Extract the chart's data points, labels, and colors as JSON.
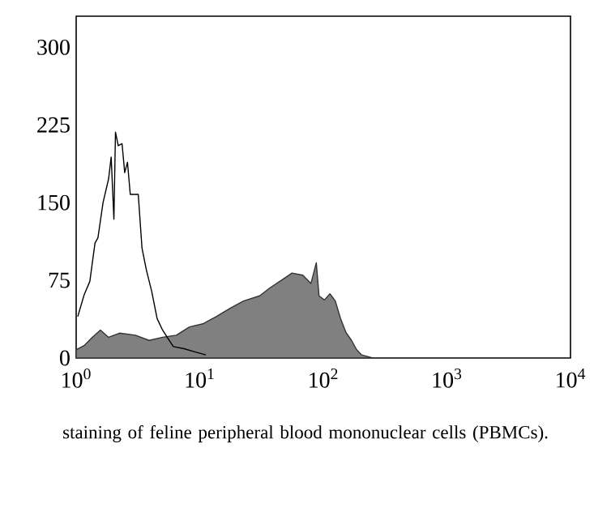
{
  "chart_data": {
    "type": "line",
    "log": "x",
    "xlim": [
      1,
      10000
    ],
    "ylim": [
      0,
      330
    ],
    "xticks": [
      {
        "value": 1,
        "label": "10$^{0}$"
      },
      {
        "value": 10,
        "label": "10$^{1}$"
      },
      {
        "value": 100,
        "label": "10$^{2}$"
      },
      {
        "value": 1000,
        "label": "10$^{3}$"
      },
      {
        "value": 10000,
        "label": "10$^{4}$"
      }
    ],
    "yticks": [
      0,
      75,
      150,
      225,
      300
    ],
    "grid": false,
    "annotations": [
      "staining of feline peripheral blood mononuclear cells (PBMCs)."
    ],
    "series": [
      {
        "type": "area",
        "color": "#808080",
        "x": [
          1,
          1.16,
          1.35,
          1.57,
          1.83,
          2.24,
          3.02,
          3.89,
          5.01,
          6.46,
          8.26,
          10.6,
          13.6,
          17.6,
          22.6,
          30.5,
          37.3,
          45.7,
          55.8,
          68.2,
          79.4,
          87.7,
          92.3,
          102,
          113,
          125,
          138,
          152,
          169,
          186,
          204,
          251
        ],
        "values": [
          8,
          12,
          20,
          27,
          20,
          24,
          22,
          17,
          20,
          22,
          30,
          33,
          40,
          48,
          55,
          60,
          68,
          75,
          82,
          80,
          72,
          92,
          60,
          56,
          62,
          55,
          38,
          25,
          17,
          8,
          3,
          0
        ]
      },
      {
        "color": "#000000",
        "x": [
          1.03,
          1.16,
          1.29,
          1.42,
          1.5,
          1.65,
          1.83,
          1.92,
          2.02,
          2.08,
          2.19,
          2.35,
          2.47,
          2.6,
          2.74,
          3.18,
          3.41,
          3.7,
          4.09,
          4.52,
          5.0,
          5.52,
          6.11,
          7.46,
          9.1,
          11.2
        ],
        "values": [
          40,
          61,
          74,
          111,
          116,
          150,
          173,
          194,
          134,
          218,
          205,
          207,
          179,
          189,
          158,
          158,
          106,
          85,
          64,
          38,
          27,
          19,
          11,
          9,
          6,
          3
        ]
      }
    ]
  }
}
